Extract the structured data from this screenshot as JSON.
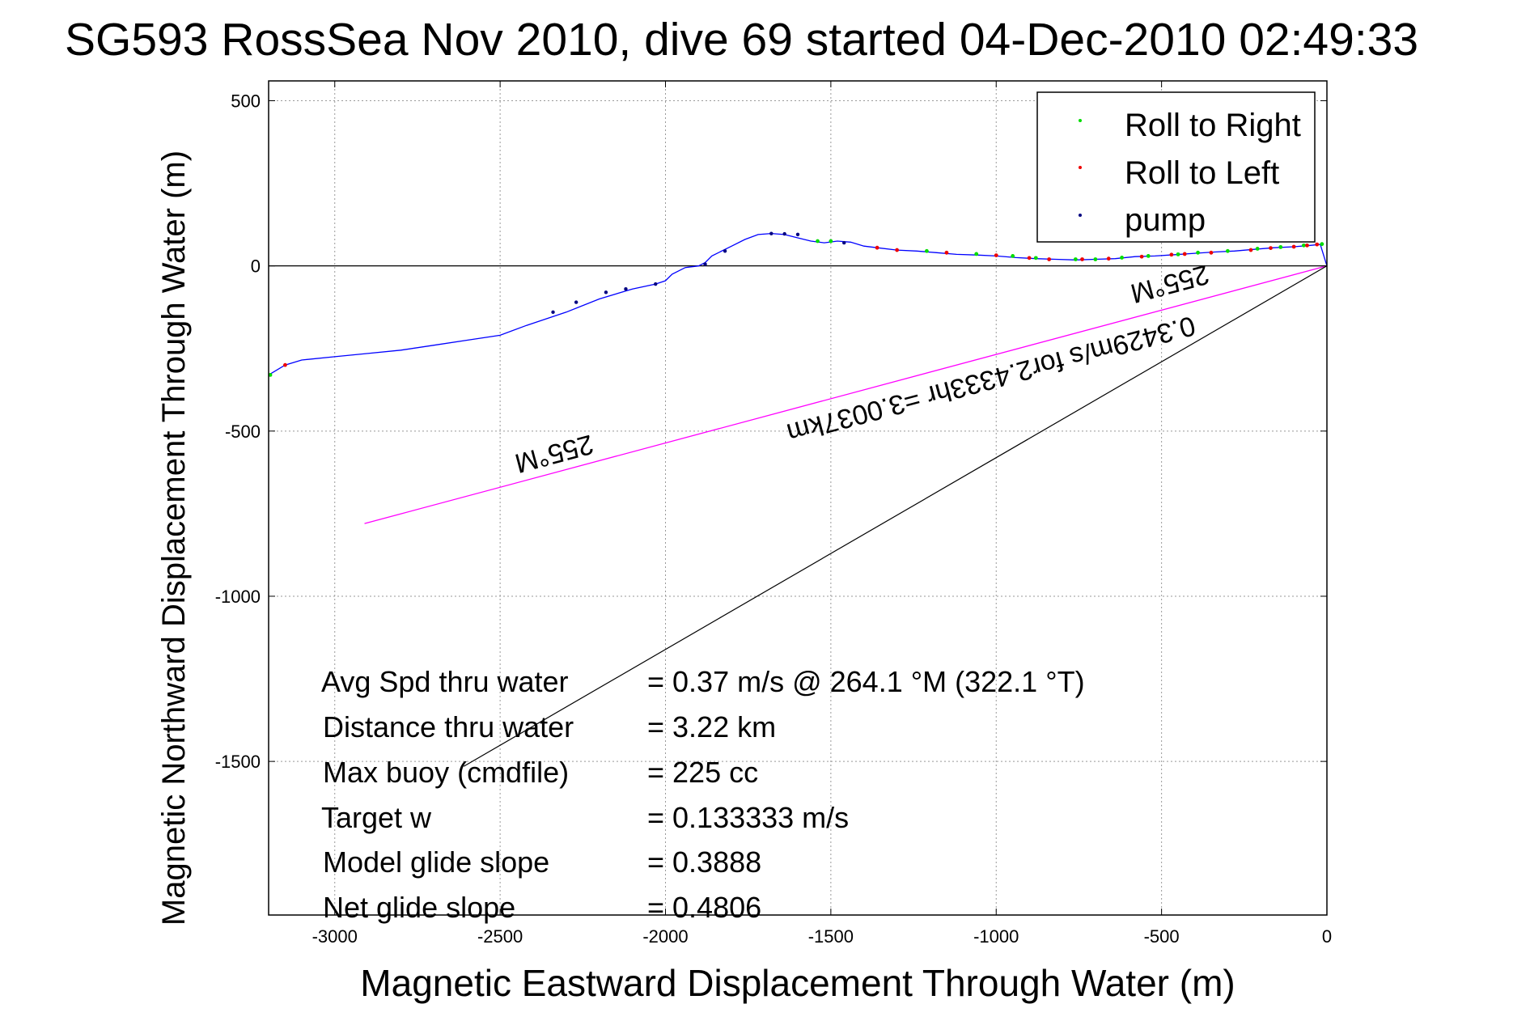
{
  "chart_data": {
    "type": "line",
    "title": "SG593 RossSea Nov 2010, dive 69 started 04-Dec-2010 02:49:33",
    "xlabel": "Magnetic Eastward Displacement Through Water (m)",
    "ylabel": "Magnetic Northward Displacement Through Water (m)",
    "xlim": [
      -3200,
      0
    ],
    "ylim": [
      -1965,
      560
    ],
    "xticks": [
      -3000,
      -2500,
      -2000,
      -1500,
      -1000,
      -500,
      0
    ],
    "xtick_labels": [
      "-3000",
      "-2500",
      "-2000",
      "-1500",
      "-1000",
      "-500",
      "0"
    ],
    "yticks": [
      500,
      0,
      -500,
      -1000,
      -1500
    ],
    "ytick_labels": [
      "500",
      "0",
      "-500",
      "-1000",
      "-1500"
    ],
    "grid": true,
    "legend_position": "top-right",
    "legend": [
      {
        "label": "Roll to Right",
        "color": "#00dd00"
      },
      {
        "label": "Roll to Left",
        "color": "#ee0000"
      },
      {
        "label": "pump",
        "color": "#000080"
      }
    ],
    "track": {
      "color": "#0000ff",
      "x": [
        -3200,
        -3150,
        -3100,
        -3000,
        -2900,
        -2800,
        -2700,
        -2600,
        -2500,
        -2420,
        -2300,
        -2200,
        -2100,
        -2030,
        -2000,
        -1980,
        -1940,
        -1900,
        -1880,
        -1860,
        -1800,
        -1760,
        -1720,
        -1680,
        -1640,
        -1600,
        -1560,
        -1520,
        -1480,
        -1440,
        -1400,
        -1360,
        -1300,
        -1240,
        -1180,
        -1120,
        -1060,
        -1000,
        -940,
        -880,
        -820,
        -760,
        -700,
        -640,
        -580,
        -520,
        -460,
        -400,
        -340,
        -280,
        -220,
        -160,
        -100,
        -50,
        -20,
        0
      ],
      "y": [
        -330,
        -300,
        -285,
        -275,
        -265,
        -255,
        -240,
        -225,
        -210,
        -180,
        -140,
        -100,
        -70,
        -55,
        -45,
        -25,
        -5,
        0,
        10,
        30,
        60,
        80,
        95,
        98,
        95,
        85,
        75,
        70,
        75,
        72,
        60,
        55,
        48,
        45,
        40,
        35,
        33,
        30,
        25,
        22,
        20,
        18,
        20,
        22,
        28,
        30,
        34,
        38,
        42,
        45,
        50,
        55,
        58,
        62,
        65,
        0
      ]
    },
    "roll_right_points": {
      "x": [
        -3195,
        -1540,
        -1500,
        -1210,
        -1060,
        -950,
        -880,
        -760,
        -700,
        -620,
        -540,
        -450,
        -390,
        -300,
        -210,
        -140,
        -70,
        -15
      ],
      "y": [
        -330,
        75,
        75,
        45,
        36,
        30,
        24,
        20,
        20,
        25,
        30,
        35,
        40,
        45,
        52,
        57,
        62,
        66
      ]
    },
    "roll_left_points": {
      "x": [
        -3150,
        -1360,
        -1300,
        -1150,
        -1000,
        -900,
        -840,
        -740,
        -660,
        -560,
        -470,
        -430,
        -350,
        -230,
        -170,
        -100,
        -60,
        -30
      ],
      "y": [
        -300,
        55,
        48,
        40,
        32,
        24,
        20,
        20,
        22,
        28,
        34,
        36,
        40,
        48,
        54,
        58,
        62,
        65
      ]
    },
    "pump_points": {
      "x": [
        -2340,
        -2270,
        -2180,
        -2120,
        -2030,
        -1880,
        -1820,
        -1680,
        -1640,
        -1600,
        -1460
      ],
      "y": [
        -140,
        -110,
        -80,
        -70,
        -55,
        5,
        45,
        98,
        97,
        95,
        70
      ]
    },
    "heading_line": {
      "color": "#ff00ff",
      "x": [
        -2910,
        0
      ],
      "y": [
        -780,
        0
      ]
    },
    "displacement_line": {
      "color": "#000000",
      "x": [
        -2610,
        0
      ],
      "y": [
        -1515,
        0
      ]
    },
    "annotations": {
      "heading_label_left": "255°M",
      "speed_label": "0.3429m/s for2.4333hr =3.0037km",
      "heading_label_right": "255°M"
    },
    "stats": [
      {
        "label": "Avg Spd thru water",
        "value": "=  0.37 m/s @ 264.1 °M (322.1 °T)"
      },
      {
        "label": "Distance thru water",
        "value": "=  3.22 km"
      },
      {
        "label": "Max buoy (cmdfile)",
        "value": "= 225 cc"
      },
      {
        "label": "Target w",
        "value": "= 0.133333 m/s"
      },
      {
        "label": "Model glide slope",
        "value": "= 0.3888"
      },
      {
        "label": "Net glide slope",
        "value": "= 0.4806"
      }
    ]
  }
}
